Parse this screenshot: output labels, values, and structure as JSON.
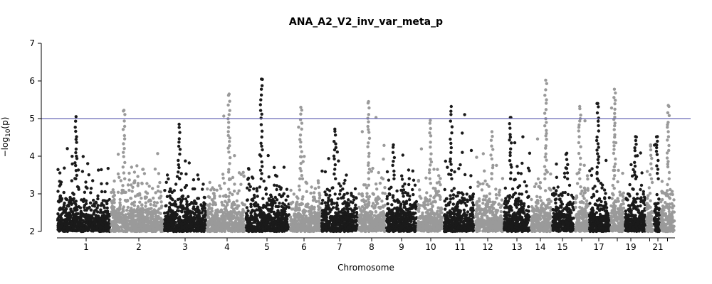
{
  "chart_data": {
    "type": "scatter",
    "title": "ANA_A2_V2_inv_var_meta_p",
    "xlabel": "Chromosome",
    "ylabel": "-log10(p)",
    "ylim": [
      2,
      7
    ],
    "yticks": [
      2,
      3,
      4,
      5,
      6,
      7
    ],
    "significance_line": 5,
    "grid": false,
    "legend": "none",
    "colors": {
      "odd": "#1a1a1a",
      "even": "#9a9a9a",
      "threshold_line": "#6a6ab8",
      "axis": "#000000"
    },
    "chromosomes": [
      {
        "chr": "1",
        "tick_label": "1",
        "peak": 5.05,
        "color": "odd"
      },
      {
        "chr": "2",
        "tick_label": "2",
        "peak": 5.22,
        "color": "even"
      },
      {
        "chr": "3",
        "tick_label": "3",
        "peak": 4.85,
        "color": "odd"
      },
      {
        "chr": "4",
        "tick_label": "4",
        "peak": 5.65,
        "color": "even"
      },
      {
        "chr": "5",
        "tick_label": "5",
        "peak": 6.05,
        "color": "odd"
      },
      {
        "chr": "6",
        "tick_label": "6",
        "peak": 5.3,
        "color": "even"
      },
      {
        "chr": "7",
        "tick_label": "7",
        "peak": 4.72,
        "color": "odd"
      },
      {
        "chr": "8",
        "tick_label": "8",
        "peak": 5.45,
        "color": "even"
      },
      {
        "chr": "9",
        "tick_label": "9",
        "peak": 4.3,
        "color": "odd"
      },
      {
        "chr": "10",
        "tick_label": "10",
        "peak": 4.95,
        "color": "even"
      },
      {
        "chr": "11",
        "tick_label": "11",
        "peak": 5.32,
        "color": "odd"
      },
      {
        "chr": "12",
        "tick_label": "12",
        "peak": 4.65,
        "color": "even"
      },
      {
        "chr": "13",
        "tick_label": "13",
        "peak": 5.03,
        "color": "odd"
      },
      {
        "chr": "14",
        "tick_label": "14",
        "peak": 6.02,
        "color": "even"
      },
      {
        "chr": "15",
        "tick_label": "15",
        "peak": 4.08,
        "color": "odd"
      },
      {
        "chr": "16",
        "tick_label": "",
        "peak": 5.32,
        "color": "even"
      },
      {
        "chr": "17",
        "tick_label": "17",
        "peak": 5.4,
        "color": "odd"
      },
      {
        "chr": "18",
        "tick_label": "",
        "peak": 5.78,
        "color": "even"
      },
      {
        "chr": "19",
        "tick_label": "19",
        "peak": 4.52,
        "color": "odd"
      },
      {
        "chr": "20",
        "tick_label": "",
        "peak": 4.3,
        "color": "even"
      },
      {
        "chr": "21",
        "tick_label": "21",
        "peak": 4.52,
        "color": "odd"
      },
      {
        "chr": "22",
        "tick_label": "",
        "peak": 5.35,
        "color": "even"
      }
    ]
  }
}
